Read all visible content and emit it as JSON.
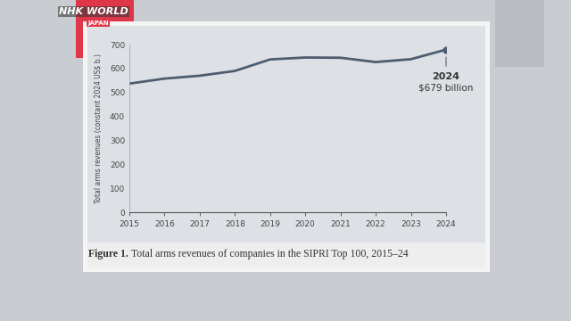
{
  "chart_data": {
    "type": "line",
    "logo": [
      "NHK WORLD",
      "JAPAN"
    ],
    "y_label": "Total arms revenues (constant 2024 US$ b.)",
    "x": [
      2015,
      2016,
      2017,
      2018,
      2019,
      2020,
      2021,
      2022,
      2023,
      2024
    ],
    "values": [
      537,
      558,
      570,
      590,
      638,
      646,
      645,
      627,
      639,
      679
    ],
    "color": "#4d5d6f",
    "xlim": [
      2015,
      2024
    ],
    "xticks": [
      2015,
      2016,
      2017,
      2018,
      2019,
      2020,
      2021,
      2022,
      2023,
      2024
    ],
    "ylim": [
      0,
      700
    ],
    "yticks": [
      0,
      100,
      200,
      300,
      400,
      500,
      600,
      700
    ],
    "grid": false,
    "annotation": [
      "2024",
      "$679 billion"
    ],
    "figure_label": "Figure 1.",
    "caption": "Total arms revenues of companies in the SIPRI Top 100, 2015–24"
  }
}
